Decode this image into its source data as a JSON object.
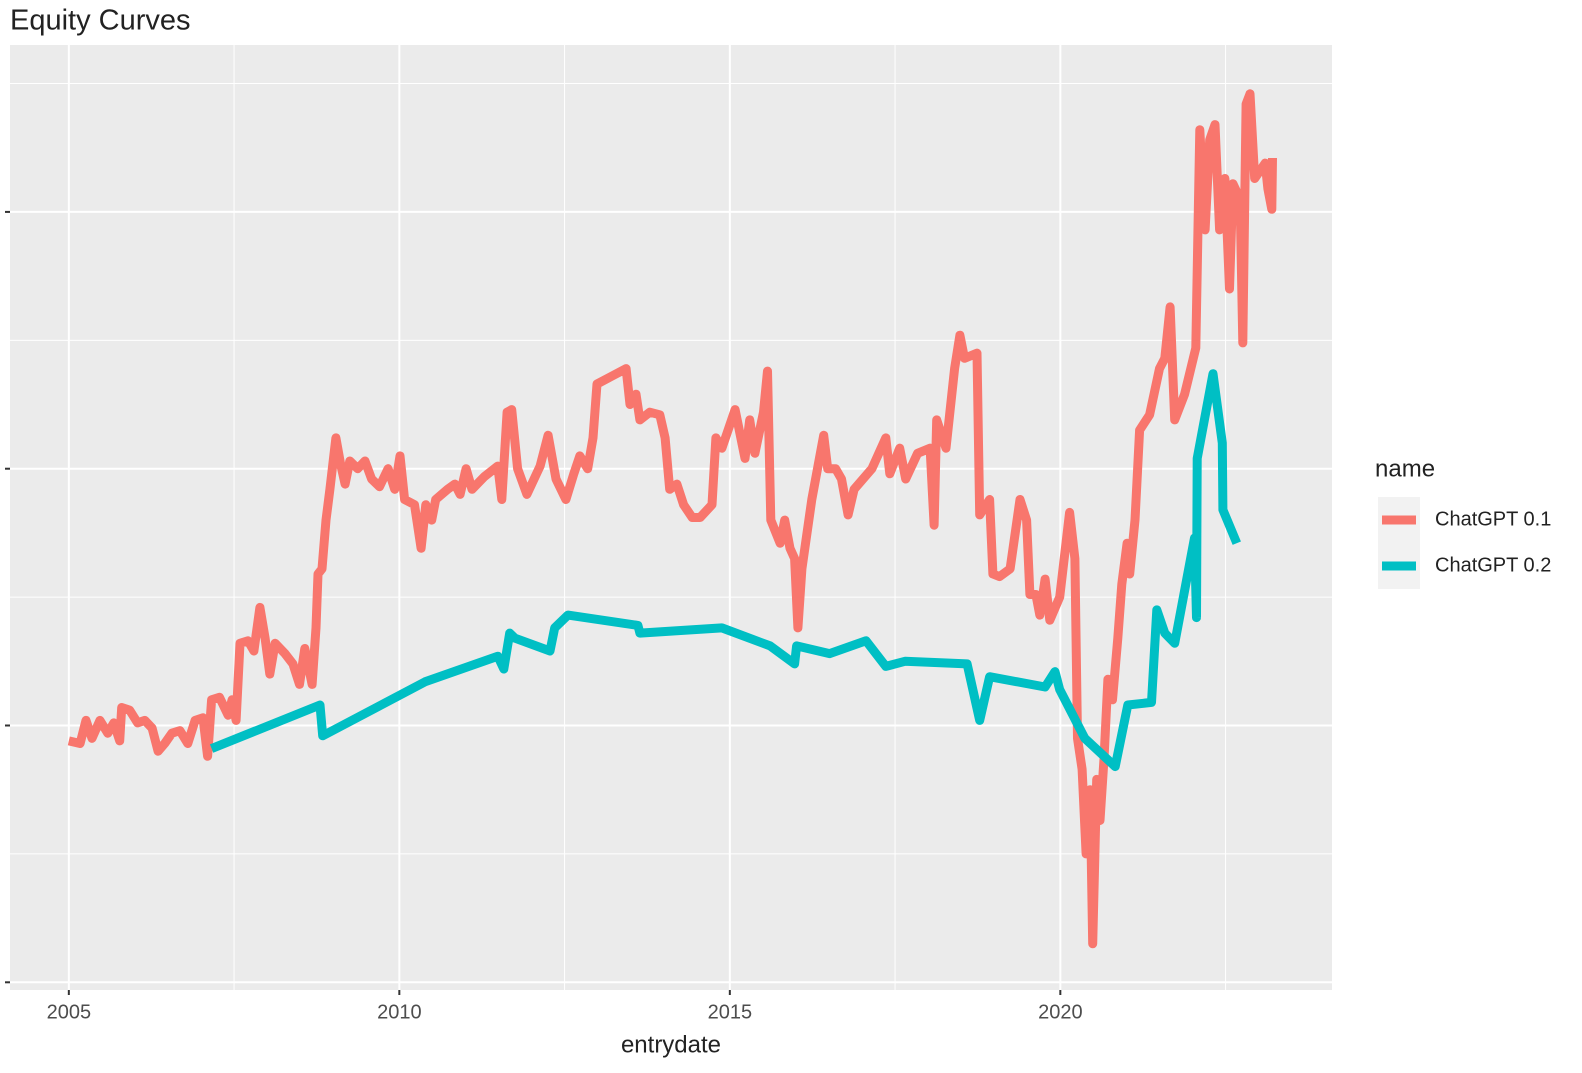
{
  "chart_data": {
    "type": "line",
    "title": "Equity Curves",
    "x_label": "entrydate",
    "legend_title": "name",
    "xlim": [
      2004.11,
      2024.11
    ],
    "xticks": [
      2005,
      2010,
      2015,
      2020
    ],
    "x_minor_ticks": [
      2007.5,
      2012.5,
      2017.5,
      2022.5
    ],
    "ylim": [
      -0.03,
      3.65
    ],
    "yticks": [
      0,
      1,
      2,
      3
    ],
    "y_minor_ticks": [
      0.5,
      1.5,
      2.5,
      3.5
    ],
    "y_tick_labels": false,
    "grid": true,
    "legend": "right",
    "series": [
      {
        "name": "ChatGPT 0.1",
        "color": "#F8766D",
        "x": [
          2005.0,
          2005.17,
          2005.26,
          2005.35,
          2005.47,
          2005.59,
          2005.68,
          2005.77,
          2005.8,
          2005.92,
          2006.04,
          2006.15,
          2006.26,
          2006.35,
          2006.45,
          2006.56,
          2006.68,
          2006.8,
          2006.91,
          2007.03,
          2007.1,
          2007.16,
          2007.28,
          2007.41,
          2007.47,
          2007.53,
          2007.59,
          2007.71,
          2007.8,
          2007.89,
          2007.97,
          2008.04,
          2008.12,
          2008.27,
          2008.39,
          2008.49,
          2008.57,
          2008.68,
          2008.74,
          2008.77,
          2008.83,
          2008.89,
          2008.95,
          2009.04,
          2009.11,
          2009.18,
          2009.25,
          2009.37,
          2009.48,
          2009.58,
          2009.7,
          2009.83,
          2009.93,
          2010.01,
          2010.08,
          2010.23,
          2010.33,
          2010.4,
          2010.49,
          2010.55,
          2010.73,
          2010.84,
          2010.92,
          2011.01,
          2011.1,
          2011.29,
          2011.49,
          2011.55,
          2011.63,
          2011.7,
          2011.79,
          2011.93,
          2012.13,
          2012.25,
          2012.37,
          2012.52,
          2012.64,
          2012.73,
          2012.85,
          2012.93,
          2012.99,
          2013.21,
          2013.43,
          2013.49,
          2013.58,
          2013.64,
          2013.79,
          2013.94,
          2014.02,
          2014.09,
          2014.2,
          2014.3,
          2014.43,
          2014.55,
          2014.73,
          2014.79,
          2014.88,
          2015.08,
          2015.23,
          2015.3,
          2015.38,
          2015.51,
          2015.57,
          2015.62,
          2015.76,
          2015.83,
          2015.91,
          2015.98,
          2016.03,
          2016.09,
          2016.24,
          2016.42,
          2016.48,
          2016.6,
          2016.69,
          2016.79,
          2016.88,
          2017.15,
          2017.36,
          2017.42,
          2017.57,
          2017.66,
          2017.84,
          2018.03,
          2018.09,
          2018.13,
          2018.27,
          2018.4,
          2018.48,
          2018.55,
          2018.74,
          2018.78,
          2018.93,
          2018.98,
          2019.08,
          2019.24,
          2019.39,
          2019.49,
          2019.54,
          2019.63,
          2019.69,
          2019.77,
          2019.84,
          2019.99,
          2020.14,
          2020.22,
          2020.26,
          2020.33,
          2020.39,
          2020.45,
          2020.49,
          2020.55,
          2020.6,
          2020.66,
          2020.72,
          2020.79,
          2020.87,
          2020.93,
          2021.01,
          2021.05,
          2021.13,
          2021.2,
          2021.35,
          2021.5,
          2021.58,
          2021.66,
          2021.73,
          2021.88,
          2022.05,
          2022.11,
          2022.19,
          2022.26,
          2022.34,
          2022.41,
          2022.49,
          2022.56,
          2022.61,
          2022.72,
          2022.76,
          2022.81,
          2022.87,
          2022.94,
          2023.1,
          2023.14,
          2023.2,
          2023.21
        ],
        "values": [
          0.94,
          0.93,
          1.02,
          0.95,
          1.02,
          0.97,
          1.01,
          0.94,
          1.07,
          1.06,
          1.01,
          1.02,
          0.99,
          0.9,
          0.93,
          0.97,
          0.98,
          0.93,
          1.02,
          1.03,
          0.88,
          1.1,
          1.11,
          1.04,
          1.1,
          1.02,
          1.32,
          1.33,
          1.29,
          1.46,
          1.34,
          1.2,
          1.32,
          1.28,
          1.24,
          1.16,
          1.3,
          1.16,
          1.38,
          1.59,
          1.61,
          1.8,
          1.92,
          2.12,
          2.02,
          1.94,
          2.03,
          2.0,
          2.03,
          1.96,
          1.93,
          2.0,
          1.92,
          2.05,
          1.88,
          1.86,
          1.69,
          1.86,
          1.8,
          1.88,
          1.92,
          1.94,
          1.9,
          2.0,
          1.92,
          1.97,
          2.01,
          1.88,
          2.22,
          2.23,
          2.0,
          1.9,
          2.01,
          2.13,
          1.96,
          1.88,
          1.98,
          2.05,
          2.0,
          2.12,
          2.33,
          2.36,
          2.39,
          2.25,
          2.29,
          2.19,
          2.22,
          2.21,
          2.12,
          1.92,
          1.94,
          1.86,
          1.81,
          1.81,
          1.86,
          2.12,
          2.08,
          2.23,
          2.04,
          2.19,
          2.06,
          2.22,
          2.38,
          1.8,
          1.71,
          1.8,
          1.69,
          1.65,
          1.38,
          1.61,
          1.88,
          2.13,
          2.0,
          2.0,
          1.96,
          1.82,
          1.92,
          2.0,
          2.12,
          1.98,
          2.08,
          1.96,
          2.06,
          2.08,
          1.78,
          2.19,
          2.08,
          2.39,
          2.52,
          2.43,
          2.45,
          1.82,
          1.88,
          1.59,
          1.58,
          1.61,
          1.88,
          1.8,
          1.51,
          1.51,
          1.43,
          1.57,
          1.41,
          1.5,
          1.83,
          1.65,
          0.95,
          0.83,
          0.5,
          0.75,
          0.15,
          0.79,
          0.63,
          0.87,
          1.18,
          1.1,
          1.34,
          1.55,
          1.71,
          1.59,
          1.8,
          2.15,
          2.21,
          2.39,
          2.43,
          2.63,
          2.19,
          2.29,
          2.47,
          3.32,
          2.93,
          3.28,
          3.34,
          2.93,
          3.13,
          2.7,
          3.11,
          3.05,
          2.49,
          3.42,
          3.46,
          3.13,
          3.19,
          3.09,
          3.01,
          3.21
        ]
      },
      {
        "name": "ChatGPT 0.2",
        "color": "#00BFC4",
        "x": [
          2007.16,
          2008.8,
          2008.84,
          2010.39,
          2011.49,
          2011.58,
          2011.67,
          2011.75,
          2012.28,
          2012.35,
          2012.55,
          2013.61,
          2013.64,
          2014.88,
          2015.61,
          2015.98,
          2016.01,
          2016.51,
          2017.06,
          2017.36,
          2017.65,
          2018.59,
          2018.78,
          2018.93,
          2019.77,
          2019.92,
          2019.99,
          2020.37,
          2020.83,
          2021.02,
          2021.38,
          2021.46,
          2021.58,
          2021.73,
          2022.03,
          2022.06,
          2022.07,
          2022.31,
          2022.45,
          2022.46,
          2022.67
        ],
        "values": [
          0.91,
          1.08,
          0.96,
          1.17,
          1.27,
          1.22,
          1.36,
          1.34,
          1.29,
          1.38,
          1.43,
          1.39,
          1.36,
          1.38,
          1.31,
          1.24,
          1.31,
          1.28,
          1.33,
          1.23,
          1.25,
          1.24,
          1.02,
          1.19,
          1.15,
          1.21,
          1.14,
          0.95,
          0.84,
          1.08,
          1.09,
          1.45,
          1.36,
          1.32,
          1.73,
          1.42,
          2.04,
          2.37,
          2.1,
          1.84,
          1.71
        ]
      }
    ]
  }
}
